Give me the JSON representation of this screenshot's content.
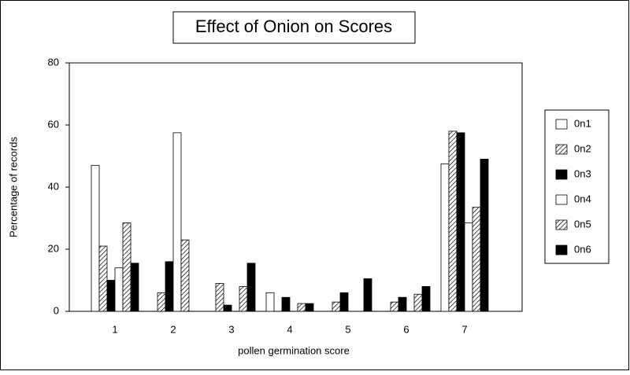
{
  "chart_data": {
    "type": "bar",
    "title": "Effect of Onion on Scores",
    "x_label": "pollen germination score",
    "y_label": "Percentage of records",
    "categories": [
      "1",
      "2",
      "3",
      "4",
      "5",
      "6",
      "7"
    ],
    "series": [
      {
        "name": "0n1",
        "color": "#ffffff",
        "hatched": false,
        "values": [
          47,
          0,
          0,
          6,
          0,
          0,
          47.5
        ]
      },
      {
        "name": "0n2",
        "color": "#ffffff",
        "hatched": true,
        "values": [
          21,
          6,
          9,
          0,
          3,
          3,
          58
        ]
      },
      {
        "name": "0n3",
        "color": "#000000",
        "hatched": false,
        "values": [
          10,
          16,
          2,
          4.5,
          6,
          4.5,
          57.5
        ]
      },
      {
        "name": "0n4",
        "color": "#ffffff",
        "hatched": false,
        "values": [
          14,
          57.5,
          0,
          0,
          0,
          0,
          28.5
        ]
      },
      {
        "name": "0n5",
        "color": "#ffffff",
        "hatched": true,
        "values": [
          28.5,
          23,
          8,
          2.5,
          0,
          5.5,
          33.5
        ]
      },
      {
        "name": "0n6",
        "color": "#000000",
        "hatched": false,
        "values": [
          15.5,
          0,
          15.5,
          2.5,
          10.5,
          8,
          49
        ]
      }
    ],
    "ylim": [
      0,
      80
    ],
    "yticks": [
      0,
      20,
      40,
      60,
      80
    ],
    "grid": false,
    "legend": "right"
  }
}
